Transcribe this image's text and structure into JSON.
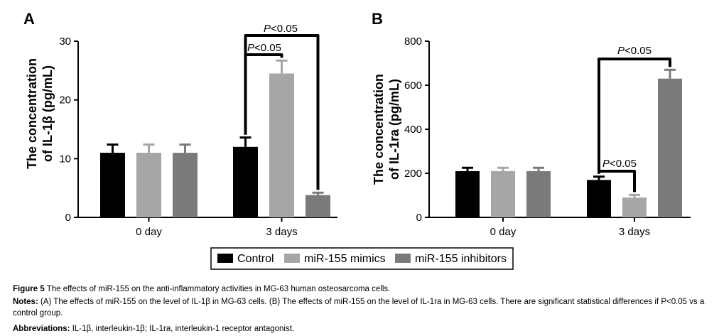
{
  "legend": {
    "items": [
      {
        "label": "Control",
        "color": "#000000"
      },
      {
        "label": "miR-155 mimics",
        "color": "#a6a6a6"
      },
      {
        "label": "miR-155 inhibitors",
        "color": "#7a7a7a"
      }
    ]
  },
  "chart_data": [
    {
      "panel": "A",
      "type": "bar",
      "ylabel_line1": "The concentration",
      "ylabel_line2": "of IL-1β (pg/mL)",
      "ylim": [
        0,
        30
      ],
      "yticks": [
        0,
        10,
        20,
        30
      ],
      "ytick_labels": [
        "0",
        "10",
        "20",
        "30"
      ],
      "categories": [
        "0 day",
        "3 days"
      ],
      "series": [
        {
          "name": "Control",
          "values": [
            11.0,
            12.0
          ],
          "errors": [
            1.4,
            1.6
          ]
        },
        {
          "name": "miR-155 mimics",
          "values": [
            11.0,
            24.5
          ],
          "errors": [
            1.4,
            2.2
          ]
        },
        {
          "name": "miR-155 inhibitors",
          "values": [
            11.0,
            3.8
          ],
          "errors": [
            1.4,
            0.4
          ]
        }
      ],
      "annotations": [
        {
          "text": "P<0.05",
          "p_letter": "P",
          "rest": "<0.05",
          "between": [
            "Control",
            "miR-155 mimics"
          ],
          "category": "3 days"
        },
        {
          "text": "P<0.05",
          "p_letter": "P",
          "rest": "<0.05",
          "between": [
            "Control",
            "miR-155 inhibitors"
          ],
          "category": "3 days"
        }
      ]
    },
    {
      "panel": "B",
      "type": "bar",
      "ylabel_line1": "The concentration",
      "ylabel_line2": "of IL-1ra (pg/mL)",
      "ylim": [
        0,
        800
      ],
      "yticks": [
        0,
        200,
        400,
        600,
        800
      ],
      "ytick_labels": [
        "0",
        "200",
        "400",
        "600",
        "800"
      ],
      "categories": [
        "0 day",
        "3 days"
      ],
      "series": [
        {
          "name": "Control",
          "values": [
            210,
            170
          ],
          "errors": [
            15,
            15
          ]
        },
        {
          "name": "miR-155 mimics",
          "values": [
            210,
            90
          ],
          "errors": [
            15,
            12
          ]
        },
        {
          "name": "miR-155 inhibitors",
          "values": [
            210,
            630
          ],
          "errors": [
            15,
            40
          ]
        }
      ],
      "annotations": [
        {
          "text": "P<0.05",
          "p_letter": "P",
          "rest": "<0.05",
          "between": [
            "Control",
            "miR-155 mimics"
          ],
          "category": "3 days"
        },
        {
          "text": "P<0.05",
          "p_letter": "P",
          "rest": "<0.05",
          "between": [
            "Control",
            "miR-155 inhibitors"
          ],
          "category": "3 days"
        }
      ]
    }
  ],
  "caption": {
    "title_bold": "Figure 5",
    "title_text": " The effects of miR-155 on the anti-inflammatory activities in MG-63 human osteosarcoma cells.",
    "notes_bold": "Notes:",
    "notes_text": " (A) The effects of miR-155 on the level of IL-1β in MG-63 cells. (B) The effects of miR-155 on the level of IL-1ra in MG-63 cells. There are significant statistical differences if P<0.05 vs a control group.",
    "abbr_bold": "Abbreviations:",
    "abbr_text": " IL-1β, interleukin-1β; IL-1ra, interleukin-1 receptor antagonist."
  }
}
